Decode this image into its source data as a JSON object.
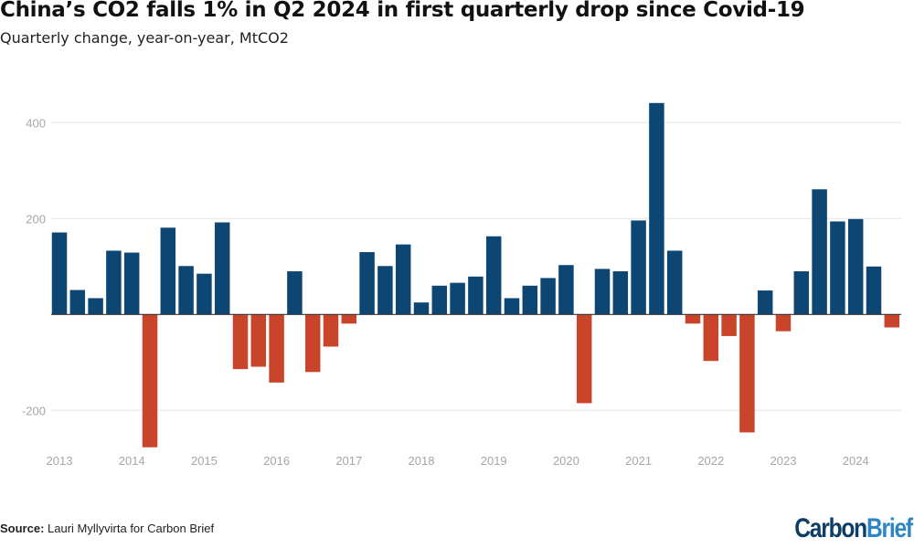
{
  "chart_data": {
    "type": "bar",
    "title": "China’s CO2 falls 1% in Q2 2024 in first quarterly drop since Covid-19",
    "subtitle": "Quarterly change, year-on-year, MtCO2",
    "xlabel": "",
    "ylabel": "",
    "x_tick_labels": [
      "2013",
      "2014",
      "2015",
      "2016",
      "2017",
      "2018",
      "2019",
      "2020",
      "2021",
      "2022",
      "2023",
      "2024"
    ],
    "y_ticks": [
      -200,
      0,
      200,
      400
    ],
    "y_tick_labels": [
      "-200",
      "",
      "200",
      "400"
    ],
    "ylim": [
      -300,
      460
    ],
    "grid": true,
    "values": [
      171,
      51,
      34,
      133,
      129,
      -277,
      181,
      101,
      85,
      192,
      -114,
      -109,
      -142,
      90,
      -120,
      -67,
      -19,
      130,
      101,
      146,
      25,
      60,
      66,
      79,
      163,
      34,
      60,
      76,
      103,
      -185,
      95,
      90,
      196,
      441,
      133,
      -19,
      -97,
      -45,
      -246,
      50,
      -35,
      90,
      261,
      194,
      199,
      100,
      -27
    ],
    "colors": {
      "positive": "#0d4673",
      "negative": "#c8452c",
      "grid": "#ececec",
      "axis": "#333333",
      "tick_text": "#a6a6a6"
    }
  },
  "footer": {
    "source_label": "Source:",
    "source_text": " Lauri Myllyvirta for Carbon Brief",
    "logo": {
      "part1": "Carbon",
      "part2": "Brief"
    }
  }
}
